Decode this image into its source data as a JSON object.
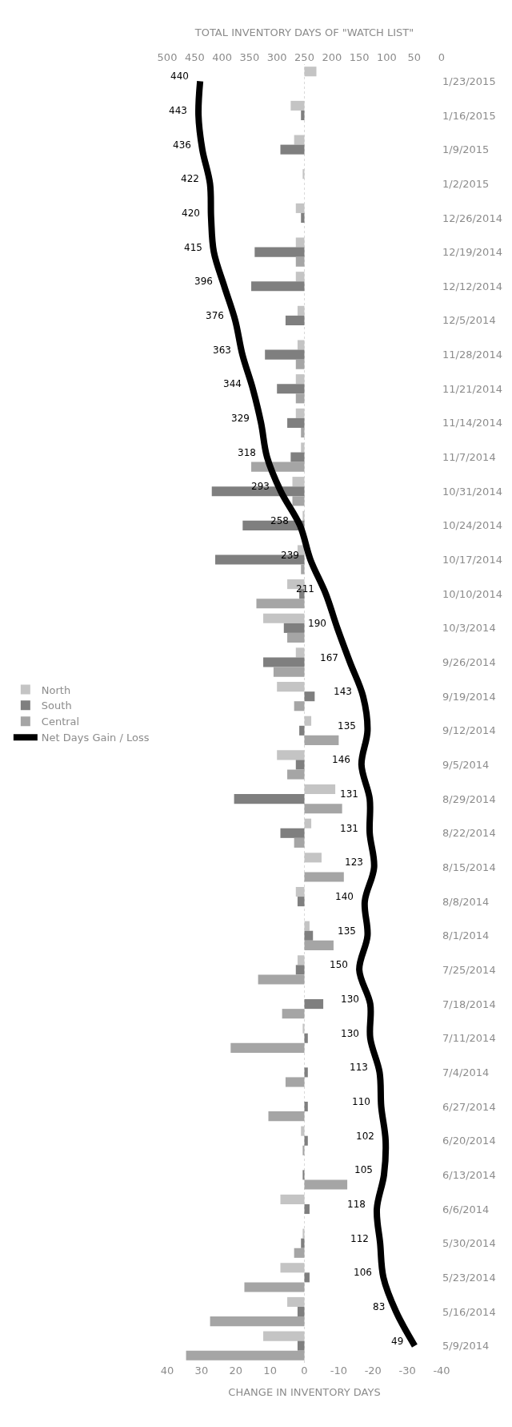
{
  "chart_data": {
    "type": "bar",
    "orientation": "horizontal",
    "xlabel": "CHANGE IN INVENTORY DAYS",
    "x2label": "TOTAL INVENTORY DAYS OF \"WATCH LIST\"",
    "categories": [
      "1/23/2015",
      "1/16/2015",
      "1/9/2015",
      "1/2/2015",
      "12/26/2014",
      "12/19/2014",
      "12/12/2014",
      "12/5/2014",
      "11/28/2014",
      "11/21/2014",
      "11/14/2014",
      "11/7/2014",
      "10/31/2014",
      "10/24/2014",
      "10/17/2014",
      "10/10/2014",
      "10/3/2014",
      "9/26/2014",
      "9/19/2014",
      "9/12/2014",
      "9/5/2014",
      "8/29/2014",
      "8/22/2014",
      "8/15/2014",
      "8/8/2014",
      "8/1/2014",
      "7/25/2014",
      "7/18/2014",
      "7/11/2014",
      "7/4/2014",
      "6/27/2014",
      "6/20/2014",
      "6/13/2014",
      "6/6/2014",
      "5/30/2014",
      "5/23/2014",
      "5/16/2014",
      "5/9/2014"
    ],
    "series": [
      {
        "name": "North",
        "color": "#c4c4c4",
        "values": [
          -3.5,
          4,
          3,
          0.5,
          2.5,
          2.5,
          2.5,
          2,
          2,
          2.5,
          2.5,
          1,
          3.5,
          0.5,
          2,
          5,
          12,
          2.5,
          8,
          -2,
          8,
          -9,
          -2,
          -5,
          2.5,
          -1.5,
          2,
          0,
          0.5,
          0,
          0,
          1,
          0,
          7,
          0.5,
          7,
          5,
          12
        ]
      },
      {
        "name": "South",
        "color": "#7f7f7f",
        "values": [
          0,
          1,
          7,
          0,
          1,
          14.5,
          15.5,
          5.5,
          11.5,
          8,
          5,
          4,
          27,
          18,
          26,
          1.5,
          6,
          12,
          -3,
          1.5,
          2.5,
          20.5,
          7,
          0,
          2,
          -2.5,
          2.5,
          -5.5,
          -1,
          -1,
          -1,
          -1,
          0.5,
          -1.5,
          1,
          -1.5,
          2,
          2
        ]
      },
      {
        "name": "Central",
        "color": "#a5a5a5",
        "values": [
          0,
          0,
          0,
          0,
          0,
          2.5,
          0,
          0,
          2.5,
          2.5,
          1,
          15.5,
          3.5,
          null,
          1,
          14,
          5,
          9,
          3,
          -10,
          5,
          -11,
          3,
          -11.5,
          0,
          -8.5,
          13.5,
          6.5,
          21.5,
          5.5,
          10.5,
          0.5,
          -12.5,
          0,
          3,
          17.5,
          27.5,
          34.5
        ]
      },
      {
        "name": "Net Days Gain / Loss",
        "type": "line",
        "axis": "x2",
        "color": "#000000",
        "data_labels": true,
        "values": [
          440,
          443,
          436,
          422,
          420,
          415,
          396,
          376,
          363,
          344,
          329,
          318,
          293,
          258,
          239,
          211,
          190,
          167,
          143,
          135,
          146,
          131,
          131,
          123,
          140,
          135,
          150,
          130,
          130,
          113,
          110,
          102,
          105,
          118,
          112,
          106,
          83,
          49
        ]
      }
    ],
    "xlim": [
      40,
      -40
    ],
    "xticks": [
      40,
      30,
      20,
      10,
      0,
      -10,
      -20,
      -30,
      -40
    ],
    "x2lim": [
      500,
      0
    ],
    "x2ticks": [
      500,
      450,
      400,
      350,
      300,
      250,
      200,
      150,
      100,
      50,
      0
    ],
    "legend": "left",
    "ref_lines": [
      {
        "axis": "x",
        "value": 0,
        "color": "#d9d9d9",
        "line_style": "dotted"
      }
    ],
    "grid": false
  }
}
